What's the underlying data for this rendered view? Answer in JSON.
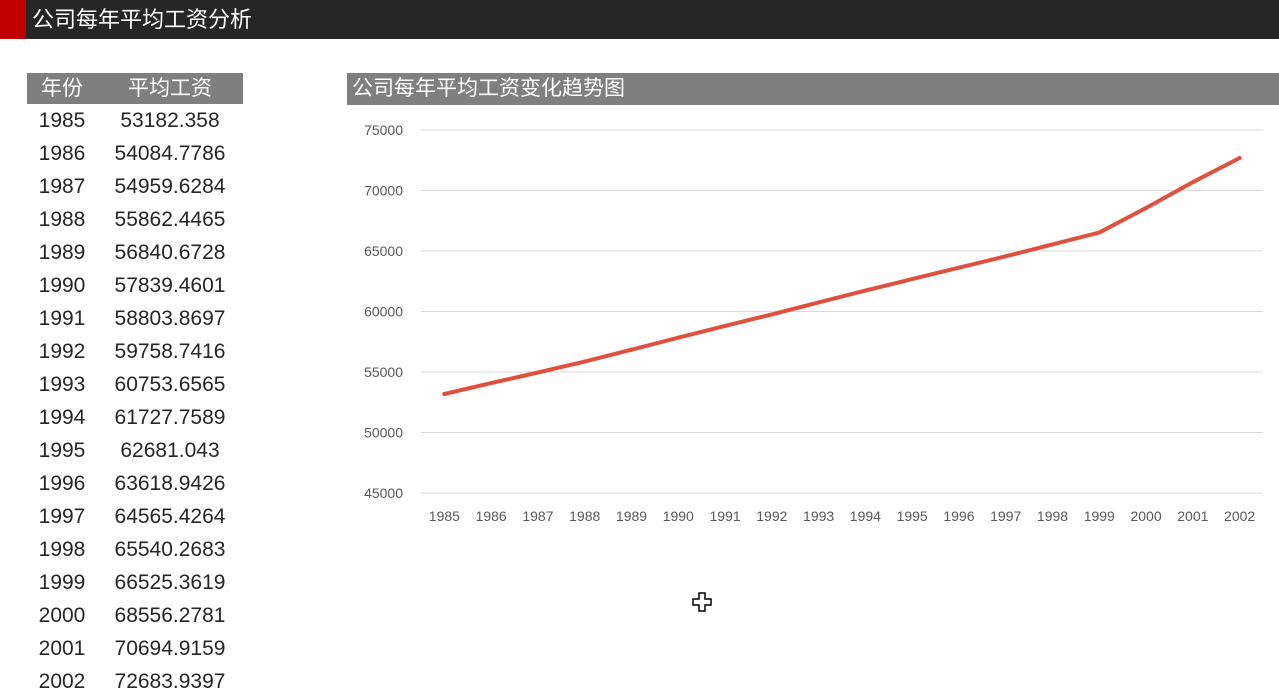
{
  "page": {
    "title": "公司每年平均工资分析"
  },
  "table": {
    "headers": {
      "year": "年份",
      "salary": "平均工资"
    },
    "rows": [
      {
        "year": "1985",
        "salary": "53182.358"
      },
      {
        "year": "1986",
        "salary": "54084.7786"
      },
      {
        "year": "1987",
        "salary": "54959.6284"
      },
      {
        "year": "1988",
        "salary": "55862.4465"
      },
      {
        "year": "1989",
        "salary": "56840.6728"
      },
      {
        "year": "1990",
        "salary": "57839.4601"
      },
      {
        "year": "1991",
        "salary": "58803.8697"
      },
      {
        "year": "1992",
        "salary": "59758.7416"
      },
      {
        "year": "1993",
        "salary": "60753.6565"
      },
      {
        "year": "1994",
        "salary": "61727.7589"
      },
      {
        "year": "1995",
        "salary": "62681.043"
      },
      {
        "year": "1996",
        "salary": "63618.9426"
      },
      {
        "year": "1997",
        "salary": "64565.4264"
      },
      {
        "year": "1998",
        "salary": "65540.2683"
      },
      {
        "year": "1999",
        "salary": "66525.3619"
      },
      {
        "year": "2000",
        "salary": "68556.2781"
      },
      {
        "year": "2001",
        "salary": "70694.9159"
      },
      {
        "year": "2002",
        "salary": "72683.9397"
      }
    ]
  },
  "chart_data": {
    "type": "line",
    "title": "公司每年平均工资变化趋势图",
    "xlabel": "",
    "ylabel": "",
    "categories": [
      "1985",
      "1986",
      "1987",
      "1988",
      "1989",
      "1990",
      "1991",
      "1992",
      "1993",
      "1994",
      "1995",
      "1996",
      "1997",
      "1998",
      "1999",
      "2000",
      "2001",
      "2002"
    ],
    "series": [
      {
        "values": [
          53182.358,
          54084.7786,
          54959.6284,
          55862.4465,
          56840.6728,
          57839.4601,
          58803.8697,
          59758.7416,
          60753.6565,
          61727.7589,
          62681.043,
          63618.9426,
          64565.4264,
          65540.2683,
          66525.3619,
          68556.2781,
          70694.9159,
          72683.9397
        ],
        "color": "#e0503d"
      }
    ],
    "ylim": [
      45000,
      75000
    ],
    "yticks": [
      45000,
      50000,
      55000,
      60000,
      65000,
      70000,
      75000
    ],
    "grid": true,
    "legend": "none"
  },
  "colors": {
    "title_bar": "#262626",
    "accent": "#c00000",
    "header_gray": "#7f7f7f",
    "line": "#e0503d",
    "grid": "#d9d9d9"
  },
  "icons": {
    "cursor": "crosshair-cursor-icon"
  }
}
